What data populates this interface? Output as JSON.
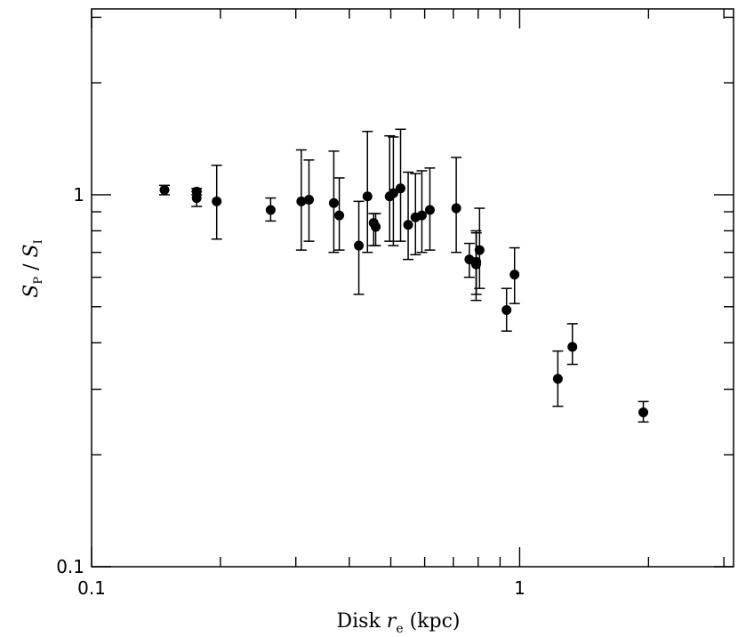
{
  "chart_data": {
    "type": "scatter",
    "xlabel_parts": {
      "text": "Disk ",
      "var": "r",
      "sub": "e",
      "unit": " (kpc)"
    },
    "ylabel_parts": {
      "num": "S",
      "num_sub": "P",
      "sep": " / ",
      "den": "S",
      "den_sub": "I"
    },
    "x_scale": "log",
    "y_scale": "log",
    "xlim": [
      0.1,
      3.16
    ],
    "ylim": [
      0.1,
      3.16
    ],
    "x_ticks": [
      {
        "value": 0.1,
        "label": "0.1"
      },
      {
        "value": 1,
        "label": "1"
      }
    ],
    "y_ticks": [
      {
        "value": 0.1,
        "label": "0.1"
      },
      {
        "value": 1,
        "label": "1"
      }
    ],
    "grid": false,
    "series": [
      {
        "points": [
          {
            "x": 0.148,
            "y": 1.03,
            "lo": 1.0,
            "hi": 1.06
          },
          {
            "x": 0.176,
            "y": 1.02,
            "lo": 1.0,
            "hi": 1.04
          },
          {
            "x": 0.176,
            "y": 0.98,
            "lo": 0.93,
            "hi": 1.02
          },
          {
            "x": 0.196,
            "y": 0.96,
            "lo": 0.76,
            "hi": 1.2
          },
          {
            "x": 0.262,
            "y": 0.91,
            "lo": 0.85,
            "hi": 0.98
          },
          {
            "x": 0.309,
            "y": 0.96,
            "lo": 0.71,
            "hi": 1.32
          },
          {
            "x": 0.322,
            "y": 0.97,
            "lo": 0.75,
            "hi": 1.24
          },
          {
            "x": 0.368,
            "y": 0.95,
            "lo": 0.7,
            "hi": 1.31
          },
          {
            "x": 0.379,
            "y": 0.88,
            "lo": 0.71,
            "hi": 1.11
          },
          {
            "x": 0.421,
            "y": 0.73,
            "lo": 0.54,
            "hi": 0.96
          },
          {
            "x": 0.441,
            "y": 0.99,
            "lo": 0.7,
            "hi": 1.48
          },
          {
            "x": 0.456,
            "y": 0.84,
            "lo": 0.73,
            "hi": 0.89
          },
          {
            "x": 0.461,
            "y": 0.82,
            "lo": 0.73,
            "hi": 0.89
          },
          {
            "x": 0.497,
            "y": 0.99,
            "lo": 0.75,
            "hi": 1.44
          },
          {
            "x": 0.507,
            "y": 1.01,
            "lo": 0.73,
            "hi": 1.43
          },
          {
            "x": 0.527,
            "y": 1.04,
            "lo": 0.75,
            "hi": 1.5
          },
          {
            "x": 0.549,
            "y": 0.83,
            "lo": 0.67,
            "hi": 1.15
          },
          {
            "x": 0.571,
            "y": 0.87,
            "lo": 0.69,
            "hi": 1.14
          },
          {
            "x": 0.591,
            "y": 0.88,
            "lo": 0.7,
            "hi": 1.16
          },
          {
            "x": 0.617,
            "y": 0.91,
            "lo": 0.71,
            "hi": 1.18
          },
          {
            "x": 0.711,
            "y": 0.92,
            "lo": 0.7,
            "hi": 1.26
          },
          {
            "x": 0.763,
            "y": 0.67,
            "lo": 0.6,
            "hi": 0.74
          },
          {
            "x": 0.791,
            "y": 0.65,
            "lo": 0.52,
            "hi": 0.8
          },
          {
            "x": 0.792,
            "y": 0.66,
            "lo": 0.54,
            "hi": 0.79
          },
          {
            "x": 0.806,
            "y": 0.71,
            "lo": 0.56,
            "hi": 0.92
          },
          {
            "x": 0.932,
            "y": 0.49,
            "lo": 0.43,
            "hi": 0.56
          },
          {
            "x": 0.973,
            "y": 0.61,
            "lo": 0.51,
            "hi": 0.72
          },
          {
            "x": 1.228,
            "y": 0.32,
            "lo": 0.27,
            "hi": 0.38
          },
          {
            "x": 1.328,
            "y": 0.39,
            "lo": 0.35,
            "hi": 0.45
          },
          {
            "x": 1.945,
            "y": 0.26,
            "lo": 0.245,
            "hi": 0.278
          }
        ]
      }
    ]
  }
}
